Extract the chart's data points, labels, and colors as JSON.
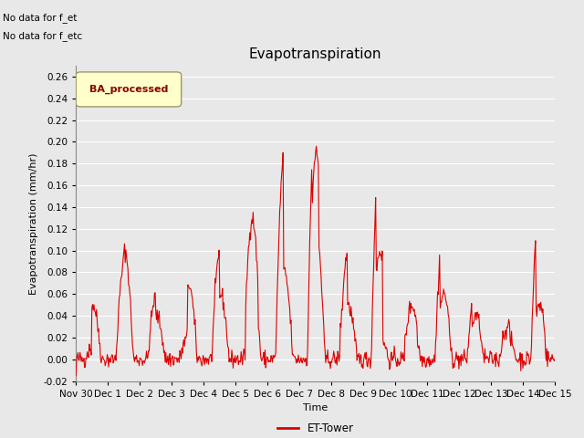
{
  "title": "Evapotranspiration",
  "ylabel": "Evapotranspiration (mm/hr)",
  "xlabel": "Time",
  "ylim": [
    -0.02,
    0.27
  ],
  "yticks": [
    -0.02,
    0.0,
    0.02,
    0.04,
    0.06,
    0.08,
    0.1,
    0.12,
    0.14,
    0.16,
    0.18,
    0.2,
    0.22,
    0.24,
    0.26
  ],
  "line_color": "#dd0000",
  "line_width": 0.8,
  "bg_color": "#e8e8e8",
  "plot_bg_color": "#e8e8e8",
  "legend_label": "BA_processed",
  "legend_box_color": "#ffffcc",
  "legend_box_edge": "#999966",
  "legend_text_color": "#880000",
  "bottom_legend_label": "ET-Tower",
  "bottom_legend_color": "#dd0000",
  "annotation1": "No data for f_et",
  "annotation2": "No data for f_etc",
  "xtick_labels": [
    "Nov 30",
    "Dec 1",
    "Dec 2",
    "Dec 3",
    "Dec 4",
    "Dec 5",
    "Dec 6",
    "Dec 7",
    "Dec 8",
    "Dec 9",
    "Dec 10",
    "Dec 11",
    "Dec 12",
    "Dec 13",
    "Dec 14",
    "Dec 15"
  ],
  "grid_color": "#ffffff",
  "grid_linewidth": 0.8,
  "title_fontsize": 11,
  "axis_fontsize": 8,
  "tick_fontsize": 7.5
}
